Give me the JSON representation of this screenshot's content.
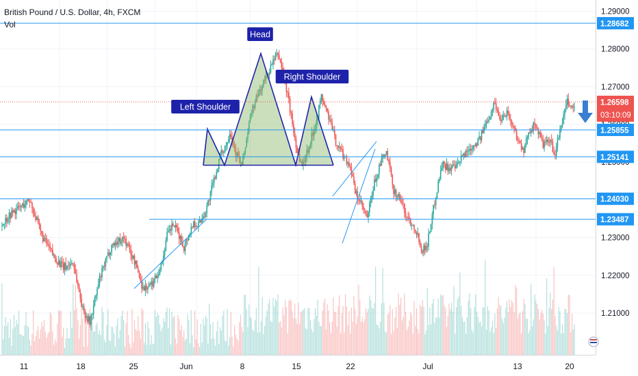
{
  "header": {
    "symbol_line": "British Pound / U.S. Dollar, 4h, FXCM",
    "volume_label": "Vol"
  },
  "colors": {
    "up": "#26a69a",
    "down": "#ef5350",
    "hline": "#2196f3",
    "label_bg": "#1e22aa",
    "pattern_fill": "#8bb96a"
  },
  "chart_data": {
    "type": "candlestick",
    "symbol": "British Pound / U.S. Dollar",
    "timeframe": "4h",
    "source": "FXCM",
    "ylim": [
      1.2,
      1.292
    ],
    "x_tick_labels": [
      "11",
      "18",
      "25",
      "Jun",
      "8",
      "15",
      "22",
      "Jul",
      "13",
      "20"
    ],
    "y_tick_labels": [
      "1.29000",
      "1.28000",
      "1.27000",
      "1.26000",
      "1.25000",
      "1.24000",
      "1.23000",
      "1.22000",
      "1.21000"
    ],
    "y_tick_values": [
      1.29,
      1.28,
      1.27,
      1.26,
      1.25,
      1.24,
      1.23,
      1.22,
      1.21
    ],
    "price_levels": [
      {
        "value": 1.28682,
        "label": "1.28682"
      },
      {
        "value": 1.25855,
        "label": "1.25855"
      },
      {
        "value": 1.25141,
        "label": "1.25141"
      },
      {
        "value": 1.2403,
        "label": "1.24030"
      },
      {
        "value": 1.23487,
        "label": "1.23487"
      }
    ],
    "current_price": {
      "value": 1.26598,
      "label": "1.26598",
      "countdown": "03:10:09"
    },
    "pattern": {
      "name": "Head and Shoulders",
      "neckline": 1.2492,
      "labels": [
        "Left Shoulder",
        "Head",
        "Right Shoulder"
      ],
      "left_shoulder": 1.2588,
      "head": 1.2788,
      "right_shoulder": 1.2673
    },
    "anchors": [
      [
        0,
        1.233
      ],
      [
        7,
        1.236
      ],
      [
        18,
        1.2385
      ],
      [
        24,
        1.24
      ],
      [
        34,
        1.2305
      ],
      [
        44,
        1.225
      ],
      [
        52,
        1.222
      ],
      [
        60,
        1.2235
      ],
      [
        68,
        1.211
      ],
      [
        74,
        1.2075
      ],
      [
        82,
        1.219
      ],
      [
        92,
        1.228
      ],
      [
        102,
        1.23
      ],
      [
        112,
        1.223
      ],
      [
        118,
        1.2165
      ],
      [
        125,
        1.2175
      ],
      [
        133,
        1.2225
      ],
      [
        138,
        1.2305
      ],
      [
        143,
        1.2335
      ],
      [
        148,
        1.2305
      ],
      [
        152,
        1.2275
      ],
      [
        160,
        1.234
      ],
      [
        164,
        1.2335
      ],
      [
        170,
        1.237
      ],
      [
        178,
        1.2465
      ],
      [
        182,
        1.2515
      ],
      [
        188,
        1.2555
      ],
      [
        190,
        1.2585
      ],
      [
        195,
        1.2525
      ],
      [
        200,
        1.249
      ],
      [
        208,
        1.2635
      ],
      [
        215,
        1.269
      ],
      [
        223,
        1.2745
      ],
      [
        226,
        1.2765
      ],
      [
        230,
        1.2788
      ],
      [
        234,
        1.274
      ],
      [
        238,
        1.268
      ],
      [
        242,
        1.26
      ],
      [
        246,
        1.253
      ],
      [
        250,
        1.249
      ],
      [
        256,
        1.2545
      ],
      [
        262,
        1.2612
      ],
      [
        266,
        1.2673
      ],
      [
        272,
        1.262
      ],
      [
        278,
        1.2555
      ],
      [
        284,
        1.252
      ],
      [
        290,
        1.249
      ],
      [
        294,
        1.242
      ],
      [
        298,
        1.2395
      ],
      [
        304,
        1.235
      ],
      [
        310,
        1.2445
      ],
      [
        316,
        1.2505
      ],
      [
        320,
        1.2525
      ],
      [
        326,
        1.2425
      ],
      [
        332,
        1.24
      ],
      [
        336,
        1.236
      ],
      [
        344,
        1.2325
      ],
      [
        350,
        1.2265
      ],
      [
        354,
        1.2285
      ],
      [
        360,
        1.2395
      ],
      [
        366,
        1.2495
      ],
      [
        372,
        1.2485
      ],
      [
        378,
        1.2485
      ],
      [
        384,
        1.252
      ],
      [
        392,
        1.2545
      ],
      [
        398,
        1.2565
      ],
      [
        404,
        1.2615
      ],
      [
        410,
        1.2658
      ],
      [
        414,
        1.2612
      ],
      [
        420,
        1.2635
      ],
      [
        424,
        1.2602
      ],
      [
        430,
        1.2555
      ],
      [
        434,
        1.2522
      ],
      [
        438,
        1.2585
      ],
      [
        444,
        1.2598
      ],
      [
        450,
        1.2545
      ],
      [
        456,
        1.2555
      ],
      [
        460,
        1.2518
      ],
      [
        464,
        1.2585
      ],
      [
        470,
        1.2658
      ],
      [
        474,
        1.2645
      ]
    ]
  }
}
